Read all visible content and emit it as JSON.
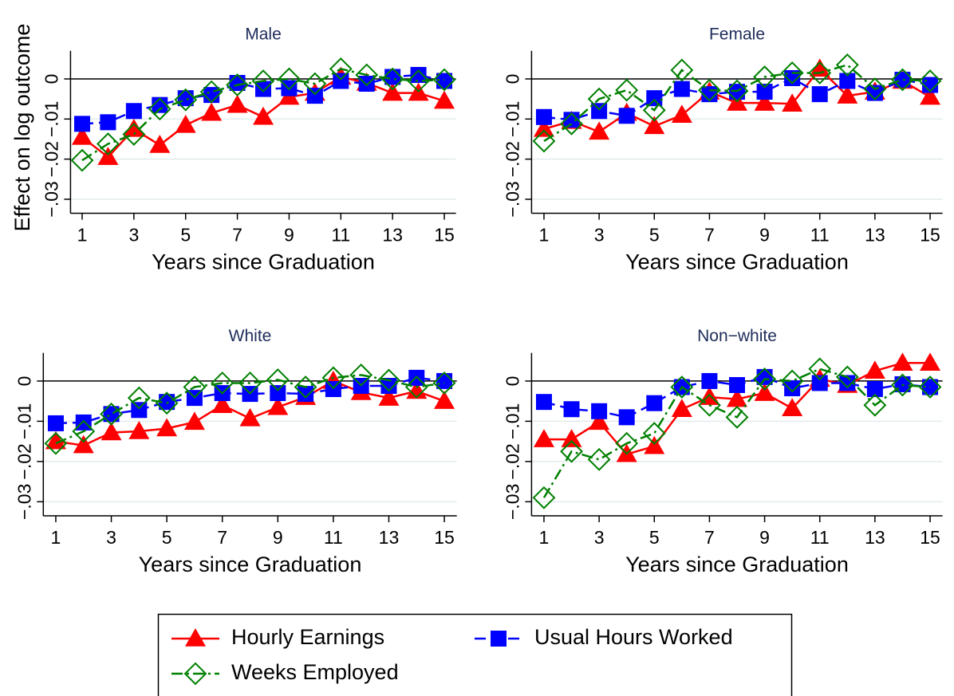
{
  "chart_data": [
    {
      "type": "line",
      "title": "Male",
      "ylabel": "Effect on log outcome",
      "xlabel": "Years since Graduation",
      "legend": "bottom",
      "x": [
        1,
        2,
        3,
        4,
        5,
        6,
        7,
        8,
        9,
        10,
        11,
        12,
        13,
        14,
        15
      ],
      "xlim": [
        0.55,
        15.45
      ],
      "ylim": [
        -0.0335,
        0.007
      ],
      "xticks": [
        1,
        3,
        5,
        7,
        9,
        11,
        13,
        15
      ],
      "yticks": [
        {
          "value": -0.03,
          "label": "−.03"
        },
        {
          "value": -0.02,
          "label": "−.02"
        },
        {
          "value": -0.01,
          "label": "−.01"
        },
        0
      ],
      "grid": true,
      "yline": 0,
      "series": [
        {
          "name": "Hourly Earnings",
          "color": "#ff0000",
          "marker": "triangle",
          "line_style": "solid",
          "values": [
            -0.0145,
            -0.0195,
            -0.0125,
            -0.0165,
            -0.0115,
            -0.0085,
            -0.0065,
            -0.0095,
            -0.0045,
            -0.0035,
            0.0005,
            -0.001,
            -0.0035,
            -0.0035,
            -0.0055
          ]
        },
        {
          "name": "Usual Hours Worked",
          "color": "#0000ff",
          "marker": "square",
          "line_style": "dash",
          "values": [
            -0.0112,
            -0.0108,
            -0.008,
            -0.0065,
            -0.0048,
            -0.004,
            -0.001,
            -0.0025,
            -0.0023,
            -0.0042,
            -0.0005,
            -0.0012,
            0.0005,
            0.001,
            -0.0005
          ]
        },
        {
          "name": "Weeks Employed",
          "color": "#008000",
          "marker": "diamond",
          "line_style": "dashdot",
          "values": [
            -0.0203,
            -0.0162,
            -0.0138,
            -0.0075,
            -0.0052,
            -0.0032,
            -0.0015,
            -0.0005,
            0.0,
            -0.0012,
            0.0025,
            0.001,
            0.0,
            -0.0005,
            -0.0002
          ]
        }
      ]
    },
    {
      "type": "line",
      "title": "Female",
      "xlabel": "Years since Graduation",
      "x": [
        1,
        2,
        3,
        4,
        5,
        6,
        7,
        8,
        9,
        10,
        11,
        12,
        13,
        14,
        15
      ],
      "xlim": [
        0.55,
        15.45
      ],
      "ylim": [
        -0.0335,
        0.007
      ],
      "xticks": [
        1,
        3,
        5,
        7,
        9,
        11,
        13,
        15
      ],
      "yticks": [
        {
          "value": -0.03,
          "label": "−.03"
        },
        {
          "value": -0.02,
          "label": "−.02"
        },
        {
          "value": -0.01,
          "label": "−.01"
        },
        0
      ],
      "grid": true,
      "yline": 0,
      "series": [
        {
          "color": "#ff0000",
          "marker": "triangle",
          "line_style": "solid",
          "values": [
            -0.0125,
            -0.0105,
            -0.0132,
            -0.0085,
            -0.0118,
            -0.009,
            -0.0032,
            -0.006,
            -0.006,
            -0.0062,
            0.0025,
            -0.0042,
            -0.0032,
            -0.0005,
            -0.0045
          ]
        },
        {
          "color": "#0000ff",
          "marker": "square",
          "line_style": "dash",
          "values": [
            -0.0095,
            -0.0102,
            -0.008,
            -0.0092,
            -0.0048,
            -0.0025,
            -0.0038,
            -0.0032,
            -0.0032,
            0.0002,
            -0.0038,
            -0.0005,
            -0.0035,
            -0.0002,
            -0.0015
          ]
        },
        {
          "color": "#008000",
          "marker": "diamond",
          "line_style": "dashdot",
          "values": [
            -0.0155,
            -0.0112,
            -0.005,
            -0.0028,
            -0.0078,
            0.0022,
            -0.0028,
            -0.003,
            0.0005,
            0.0015,
            0.0015,
            0.0035,
            -0.0025,
            -0.0002,
            -0.0005
          ]
        }
      ]
    },
    {
      "type": "line",
      "title": "White",
      "xlabel": "Years since Graduation",
      "x": [
        1,
        2,
        3,
        4,
        5,
        6,
        7,
        8,
        9,
        10,
        11,
        12,
        13,
        14,
        15
      ],
      "xlim": [
        0.55,
        15.45
      ],
      "ylim": [
        -0.0335,
        0.007
      ],
      "xticks": [
        1,
        3,
        5,
        7,
        9,
        11,
        13,
        15
      ],
      "yticks": [
        {
          "value": -0.03,
          "label": "−.03"
        },
        {
          "value": -0.02,
          "label": "−.02"
        },
        {
          "value": -0.01,
          "label": "−.01"
        },
        0
      ],
      "grid": true,
      "yline": 0,
      "series": [
        {
          "color": "#ff0000",
          "marker": "triangle",
          "line_style": "solid",
          "values": [
            -0.015,
            -0.016,
            -0.0128,
            -0.0125,
            -0.0118,
            -0.0102,
            -0.006,
            -0.0093,
            -0.0065,
            -0.004,
            0.0,
            -0.0028,
            -0.0042,
            -0.0025,
            -0.005
          ]
        },
        {
          "color": "#0000ff",
          "marker": "square",
          "line_style": "dash",
          "values": [
            -0.0105,
            -0.0103,
            -0.0082,
            -0.0072,
            -0.0052,
            -0.0042,
            -0.003,
            -0.0032,
            -0.003,
            -0.0032,
            -0.002,
            -0.0012,
            -0.0012,
            0.0008,
            0.0
          ]
        },
        {
          "color": "#008000",
          "marker": "diamond",
          "line_style": "dashdot",
          "values": [
            -0.0155,
            -0.0125,
            -0.0082,
            -0.0042,
            -0.0055,
            -0.0015,
            -0.0005,
            -0.0005,
            0.0003,
            -0.0015,
            0.0008,
            0.0015,
            0.0002,
            -0.0015,
            -0.0005
          ]
        }
      ]
    },
    {
      "type": "line",
      "title": "Non−white",
      "xlabel": "Years since Graduation",
      "x": [
        1,
        2,
        3,
        4,
        5,
        6,
        7,
        8,
        9,
        10,
        11,
        12,
        13,
        14,
        15
      ],
      "xlim": [
        0.55,
        15.45
      ],
      "ylim": [
        -0.0335,
        0.007
      ],
      "xticks": [
        1,
        3,
        5,
        7,
        9,
        11,
        13,
        15
      ],
      "yticks": [
        {
          "value": -0.03,
          "label": "−.03"
        },
        {
          "value": -0.02,
          "label": "−.02"
        },
        {
          "value": -0.01,
          "label": "−.01"
        },
        0
      ],
      "grid": true,
      "yline": 0,
      "series": [
        {
          "color": "#ff0000",
          "marker": "triangle",
          "line_style": "solid",
          "values": [
            -0.0145,
            -0.0145,
            -0.0102,
            -0.0182,
            -0.0162,
            -0.007,
            -0.004,
            -0.0045,
            -0.003,
            -0.0068,
            0.0005,
            -0.001,
            0.0025,
            0.0045,
            0.0045
          ]
        },
        {
          "color": "#0000ff",
          "marker": "square",
          "line_style": "dash",
          "values": [
            -0.0052,
            -0.007,
            -0.0075,
            -0.009,
            -0.0055,
            -0.0015,
            0.0,
            -0.001,
            0.001,
            -0.0018,
            -0.0005,
            -0.0005,
            -0.002,
            -0.0008,
            -0.0015
          ]
        },
        {
          "color": "#008000",
          "marker": "diamond",
          "line_style": "dashdot",
          "values": [
            -0.029,
            -0.0175,
            -0.0195,
            -0.0155,
            -0.013,
            -0.0015,
            -0.006,
            -0.009,
            0.0005,
            0.0,
            0.003,
            0.001,
            -0.006,
            -0.001,
            -0.0015
          ]
        }
      ]
    }
  ]
}
